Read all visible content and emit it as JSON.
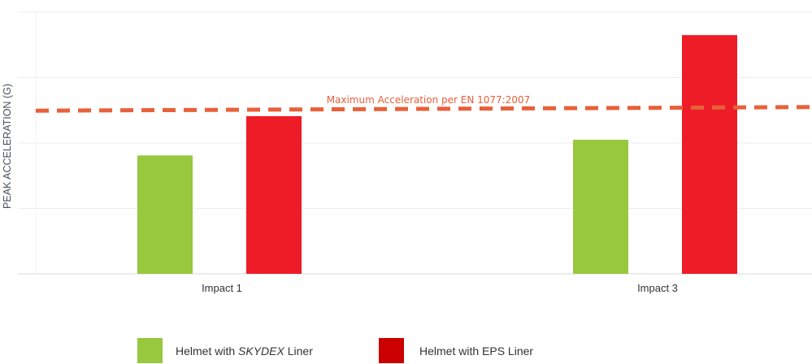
{
  "chart_data": {
    "type": "bar",
    "title": "",
    "xlabel": "",
    "ylabel": "PEAK ACCELERATION (G)",
    "categories": [
      "Impact 1",
      "Impact 3"
    ],
    "series": [
      {
        "name": "Helmet with SKYDEX Liner",
        "color": "#97c83d",
        "values": [
          181,
          205
        ]
      },
      {
        "name": "Helmet with EPS Liner",
        "color": "#ee1c27",
        "values": [
          241,
          365
        ]
      }
    ],
    "ylim": [
      0,
      400
    ],
    "y_ticks": [
      0,
      100,
      200,
      300,
      400
    ],
    "y_tick_labels_shown": false,
    "grid": true,
    "reference_line": {
      "label": "Maximum Acceleration per EN 1077:2007",
      "value": 250,
      "color": "#e8603a",
      "style": "dashed"
    },
    "legend_position": "bottom"
  },
  "legend": [
    {
      "prefix": "Helmet with ",
      "emph": "SKYDEX",
      "suffix": " Liner",
      "color": "#97c83d"
    },
    {
      "prefix": "Helmet with EPS Liner",
      "emph": "",
      "suffix": "",
      "color": "#cc0000"
    }
  ]
}
